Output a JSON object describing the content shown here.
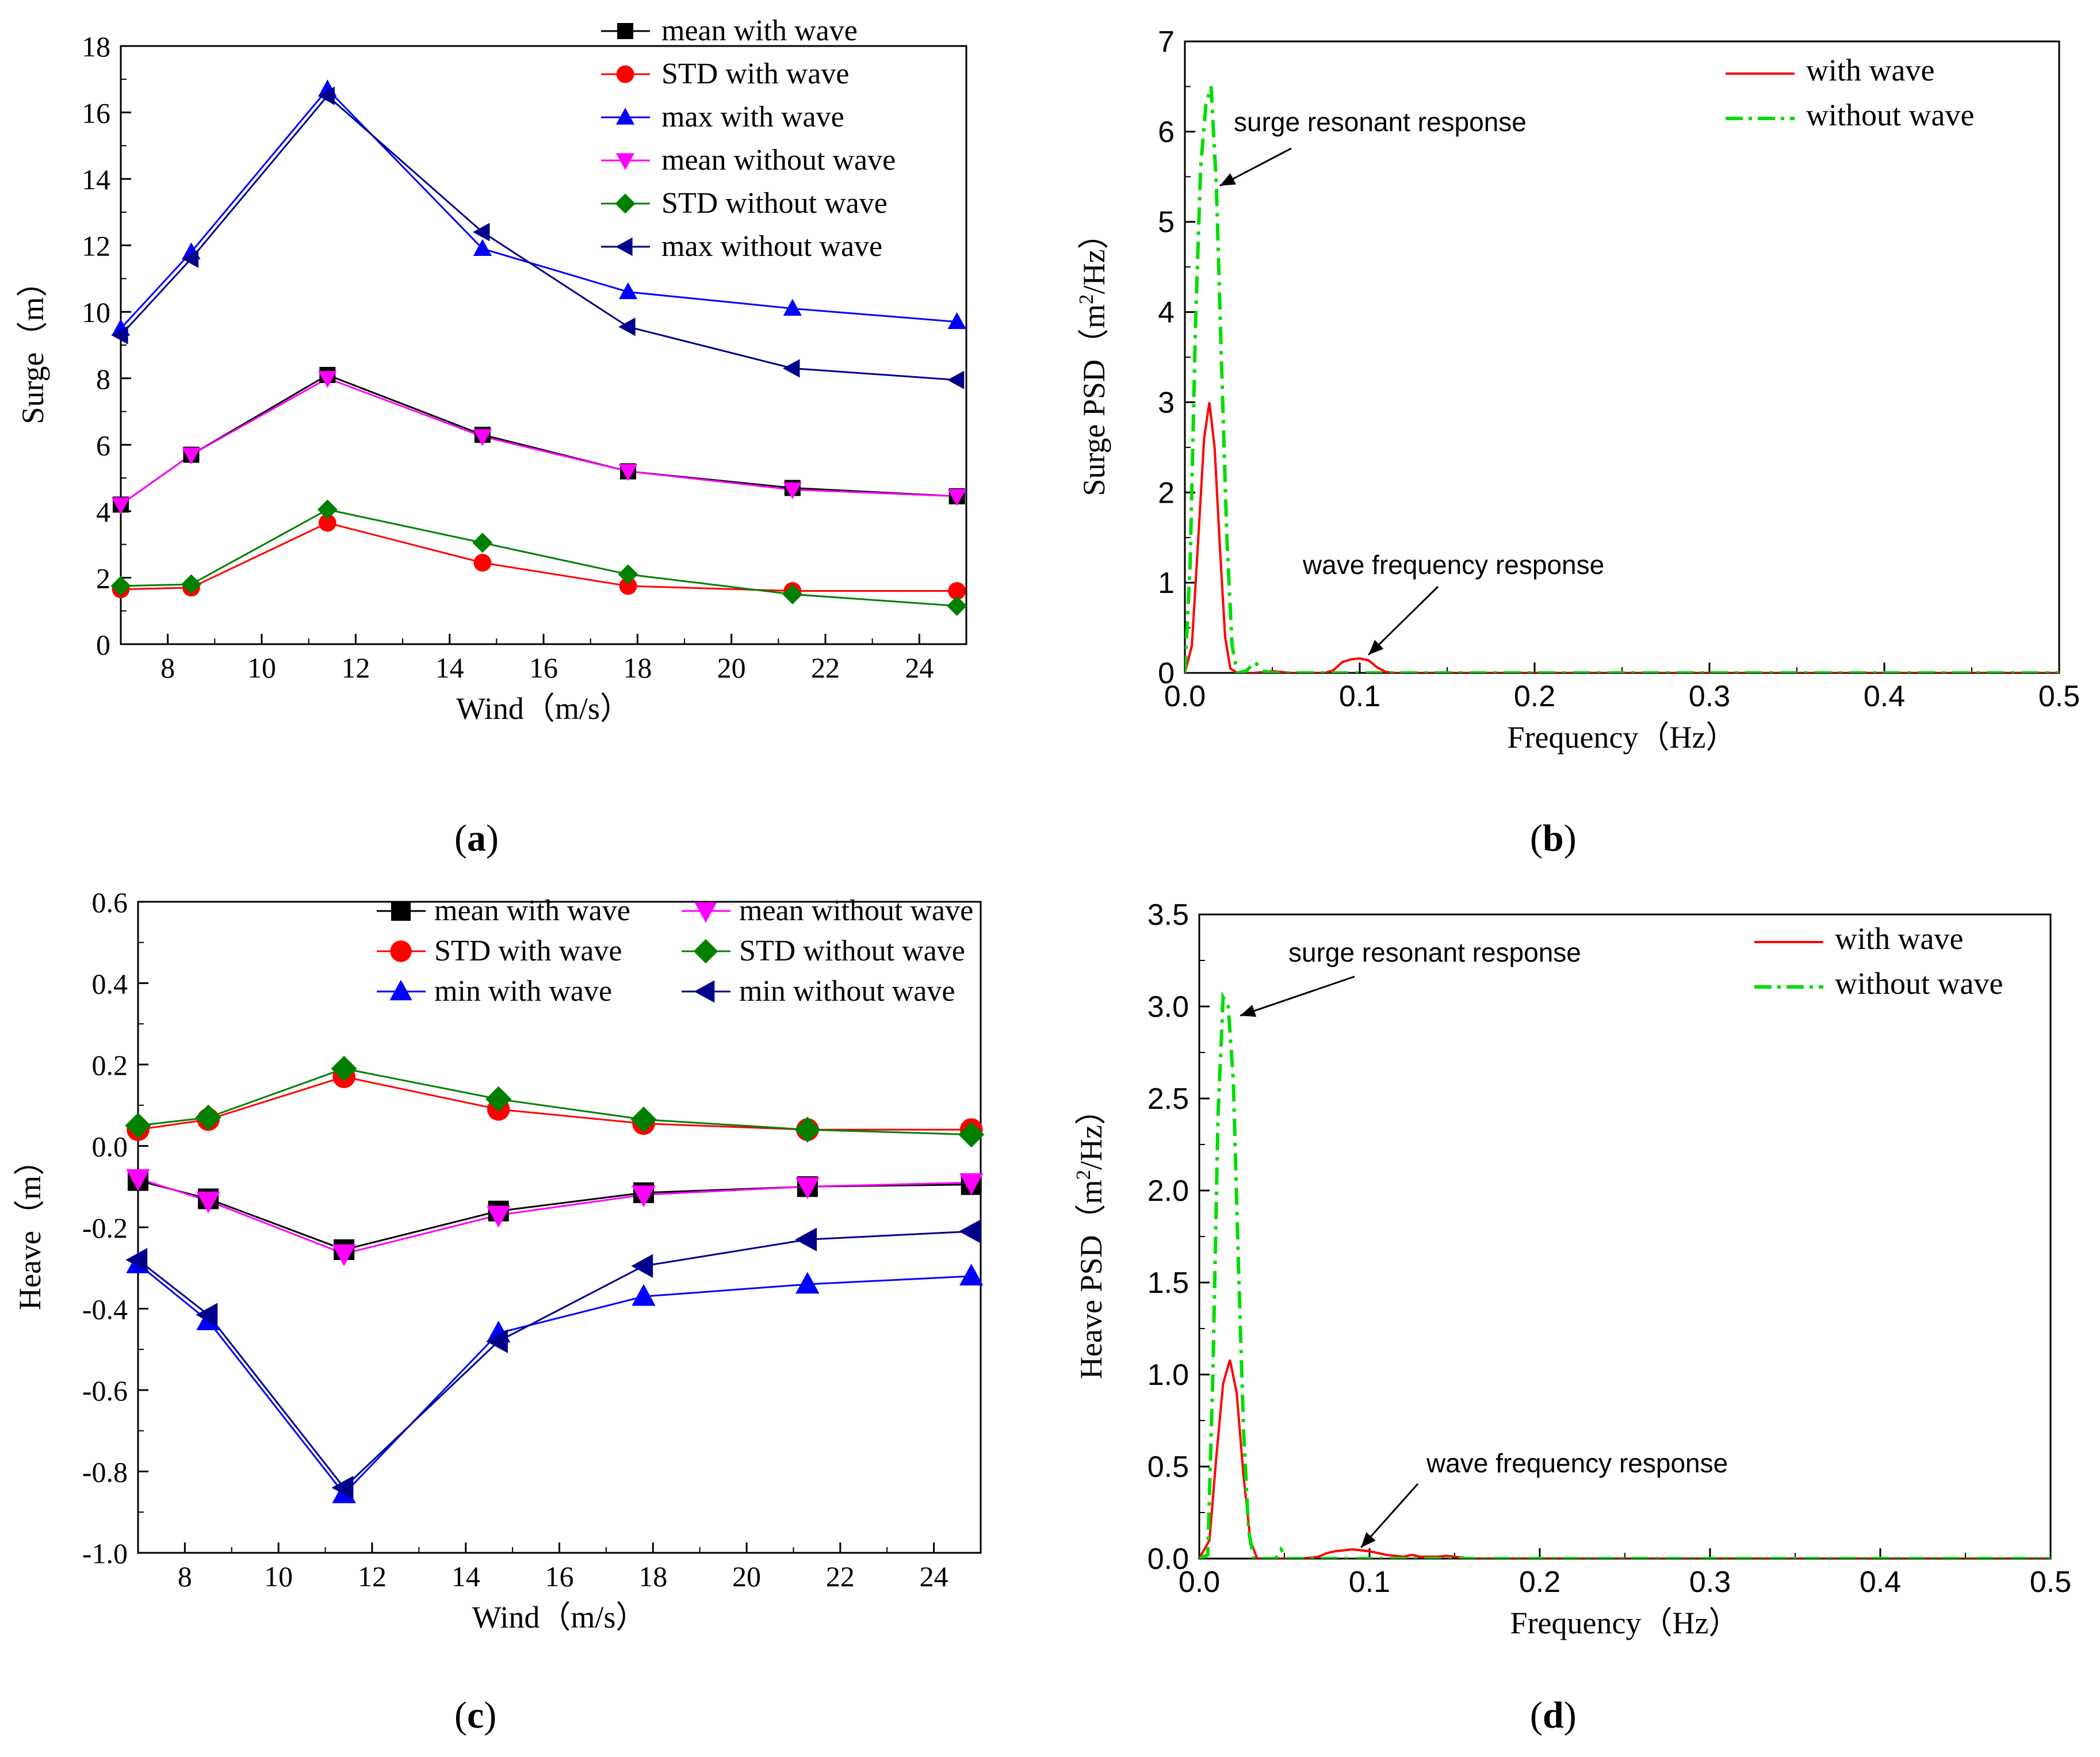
{
  "chart_data": [
    {
      "panel": "a",
      "type": "line",
      "xlabel": "Wind（m/s）",
      "ylabel": "Surge（m）",
      "xlim": [
        7,
        25
      ],
      "ylim": [
        0,
        18
      ],
      "xticks": [
        8,
        10,
        12,
        14,
        16,
        18,
        20,
        22,
        24
      ],
      "yticks": [
        0,
        2,
        4,
        6,
        8,
        10,
        12,
        14,
        16,
        18
      ],
      "legend_position": "top-right",
      "x": [
        7.0,
        8.5,
        11.4,
        14.7,
        17.8,
        21.3,
        24.8
      ],
      "series": [
        {
          "name": "mean with wave",
          "color": "#000000",
          "marker": "square",
          "values": [
            4.2,
            5.7,
            8.1,
            6.3,
            5.2,
            4.7,
            4.45
          ]
        },
        {
          "name": "STD with wave",
          "color": "#ff0000",
          "marker": "circle",
          "values": [
            1.65,
            1.7,
            3.65,
            2.45,
            1.75,
            1.6,
            1.6
          ]
        },
        {
          "name": "max with wave",
          "color": "#0000ff",
          "marker": "triangle-up",
          "values": [
            9.5,
            11.8,
            16.7,
            11.9,
            10.6,
            10.1,
            9.7
          ]
        },
        {
          "name": "mean without wave",
          "color": "#ff00ff",
          "marker": "triangle-down",
          "values": [
            4.2,
            5.7,
            8.0,
            6.25,
            5.2,
            4.65,
            4.45
          ]
        },
        {
          "name": "STD without wave",
          "color": "#008000",
          "marker": "diamond",
          "values": [
            1.75,
            1.8,
            4.05,
            3.05,
            2.1,
            1.5,
            1.15
          ]
        },
        {
          "name": "max without wave",
          "color": "#00008b",
          "marker": "triangle-left",
          "values": [
            9.3,
            11.6,
            16.5,
            12.4,
            9.55,
            8.3,
            7.95
          ]
        }
      ]
    },
    {
      "panel": "b",
      "type": "line",
      "xlabel": "Frequency（Hz）",
      "ylabel": "Surge PSD（m2/Hz）",
      "ylabel_parts": {
        "pre": "Surge PSD（m",
        "sup": "2",
        "post": "/Hz）"
      },
      "xlim": [
        0,
        0.5
      ],
      "ylim": [
        0,
        7
      ],
      "xticks": [
        0.0,
        0.1,
        0.2,
        0.3,
        0.4,
        0.5
      ],
      "yticks": [
        0,
        1,
        2,
        3,
        4,
        5,
        6,
        7
      ],
      "legend_position": "top-right",
      "annotations": [
        {
          "text": "surge resonant response",
          "x": 0.02,
          "y": 5.4
        },
        {
          "text": "wave frequency response",
          "x": 0.105,
          "y": 0.2
        }
      ],
      "series": [
        {
          "name": "with wave",
          "color": "#ff0000",
          "dash": "solid",
          "x": [
            0.0,
            0.004,
            0.008,
            0.011,
            0.014,
            0.017,
            0.02,
            0.023,
            0.026,
            0.03,
            0.04,
            0.05,
            0.06,
            0.08,
            0.085,
            0.09,
            0.095,
            0.1,
            0.105,
            0.11,
            0.115,
            0.12,
            0.15,
            0.5
          ],
          "values": [
            0.0,
            0.3,
            1.6,
            2.6,
            3.0,
            2.5,
            1.4,
            0.4,
            0.05,
            0.0,
            0.0,
            0.02,
            0.0,
            0.0,
            0.03,
            0.12,
            0.15,
            0.16,
            0.14,
            0.06,
            0.01,
            0.0,
            0.0,
            0.0
          ]
        },
        {
          "name": "without wave",
          "color": "#00dd00",
          "dash": "dashdot",
          "x": [
            0.0,
            0.003,
            0.006,
            0.009,
            0.012,
            0.015,
            0.018,
            0.021,
            0.024,
            0.027,
            0.03,
            0.035,
            0.04,
            0.045,
            0.05,
            0.06,
            0.5
          ],
          "values": [
            0.0,
            1.2,
            3.8,
            5.6,
            6.3,
            6.5,
            5.4,
            3.4,
            1.5,
            0.3,
            0.0,
            0.02,
            0.12,
            0.02,
            0.0,
            0.0,
            0.0
          ]
        }
      ]
    },
    {
      "panel": "c",
      "type": "line",
      "xlabel": "Wind（m/s）",
      "ylabel": "Heave（m）",
      "xlim": [
        7,
        25
      ],
      "ylim": [
        -1.0,
        0.6
      ],
      "xticks": [
        8,
        10,
        12,
        14,
        16,
        18,
        20,
        22,
        24
      ],
      "yticks": [
        -1.0,
        -0.8,
        -0.6,
        -0.4,
        -0.2,
        0.0,
        0.2,
        0.4,
        0.6
      ],
      "legend_position": "top-right",
      "x": [
        7.0,
        8.5,
        11.4,
        14.7,
        17.8,
        21.3,
        24.8
      ],
      "series": [
        {
          "name": "mean with wave",
          "color": "#000000",
          "marker": "square",
          "values": [
            -0.085,
            -0.13,
            -0.255,
            -0.16,
            -0.115,
            -0.1,
            -0.095
          ]
        },
        {
          "name": "STD with wave",
          "color": "#ff0000",
          "marker": "circle",
          "values": [
            0.04,
            0.065,
            0.17,
            0.09,
            0.055,
            0.04,
            0.04
          ]
        },
        {
          "name": "min with wave",
          "color": "#0000ff",
          "marker": "triangle-up",
          "values": [
            -0.29,
            -0.43,
            -0.855,
            -0.46,
            -0.37,
            -0.34,
            -0.32
          ]
        },
        {
          "name": "mean without wave",
          "color": "#ff00ff",
          "marker": "triangle-down",
          "values": [
            -0.08,
            -0.135,
            -0.265,
            -0.17,
            -0.12,
            -0.1,
            -0.09
          ]
        },
        {
          "name": "STD without wave",
          "color": "#008000",
          "marker": "diamond",
          "values": [
            0.05,
            0.07,
            0.19,
            0.115,
            0.065,
            0.04,
            0.028
          ]
        },
        {
          "name": "min without wave",
          "color": "#00008b",
          "marker": "triangle-left",
          "values": [
            -0.28,
            -0.415,
            -0.84,
            -0.48,
            -0.295,
            -0.23,
            -0.21
          ]
        }
      ],
      "legend_columns": [
        [
          "mean with wave",
          "STD with wave",
          "min with wave"
        ],
        [
          "mean without wave",
          "STD without wave",
          "min without wave"
        ]
      ]
    },
    {
      "panel": "d",
      "type": "line",
      "xlabel": "Frequency（Hz）",
      "ylabel": "Heave PSD（m2/Hz）",
      "ylabel_parts": {
        "pre": "Heave PSD（m",
        "sup": "2",
        "post": "/Hz）"
      },
      "xlim": [
        0,
        0.5
      ],
      "ylim": [
        0,
        3.5
      ],
      "xticks": [
        0.0,
        0.1,
        0.2,
        0.3,
        0.4,
        0.5
      ],
      "yticks": [
        0.0,
        0.5,
        1.0,
        1.5,
        2.0,
        2.5,
        3.0,
        3.5
      ],
      "legend_position": "top-right",
      "annotations": [
        {
          "text": "surge resonant response",
          "x": 0.024,
          "y": 2.95
        },
        {
          "text": "wave frequency response",
          "x": 0.095,
          "y": 0.06
        }
      ],
      "series": [
        {
          "name": "with wave",
          "color": "#ff0000",
          "dash": "solid",
          "x": [
            0.0,
            0.006,
            0.01,
            0.014,
            0.018,
            0.022,
            0.026,
            0.03,
            0.034,
            0.04,
            0.06,
            0.07,
            0.075,
            0.08,
            0.09,
            0.1,
            0.11,
            0.12,
            0.125,
            0.13,
            0.14,
            0.145,
            0.15,
            0.16,
            0.5
          ],
          "values": [
            0.0,
            0.1,
            0.55,
            0.95,
            1.08,
            0.9,
            0.45,
            0.1,
            0.0,
            0.0,
            0.0,
            0.01,
            0.03,
            0.04,
            0.05,
            0.04,
            0.02,
            0.01,
            0.02,
            0.01,
            0.01,
            0.015,
            0.01,
            0.0,
            0.0
          ]
        },
        {
          "name": "without wave",
          "color": "#00dd00",
          "dash": "dashdot",
          "x": [
            0.0,
            0.005,
            0.008,
            0.011,
            0.014,
            0.017,
            0.02,
            0.023,
            0.026,
            0.029,
            0.032,
            0.036,
            0.045,
            0.048,
            0.052,
            0.5
          ],
          "values": [
            0.0,
            0.02,
            1.0,
            2.4,
            3.05,
            3.0,
            2.6,
            1.6,
            0.7,
            0.15,
            0.0,
            0.0,
            0.0,
            0.05,
            0.0,
            0.0
          ]
        }
      ]
    }
  ],
  "panel_labels": {
    "a": {
      "open": "(",
      "letter": "a",
      "close": ")"
    },
    "b": {
      "open": "(",
      "letter": "b",
      "close": ")"
    },
    "c": {
      "open": "(",
      "letter": "c",
      "close": ")"
    },
    "d": {
      "open": "(",
      "letter": "d",
      "close": ")"
    }
  }
}
